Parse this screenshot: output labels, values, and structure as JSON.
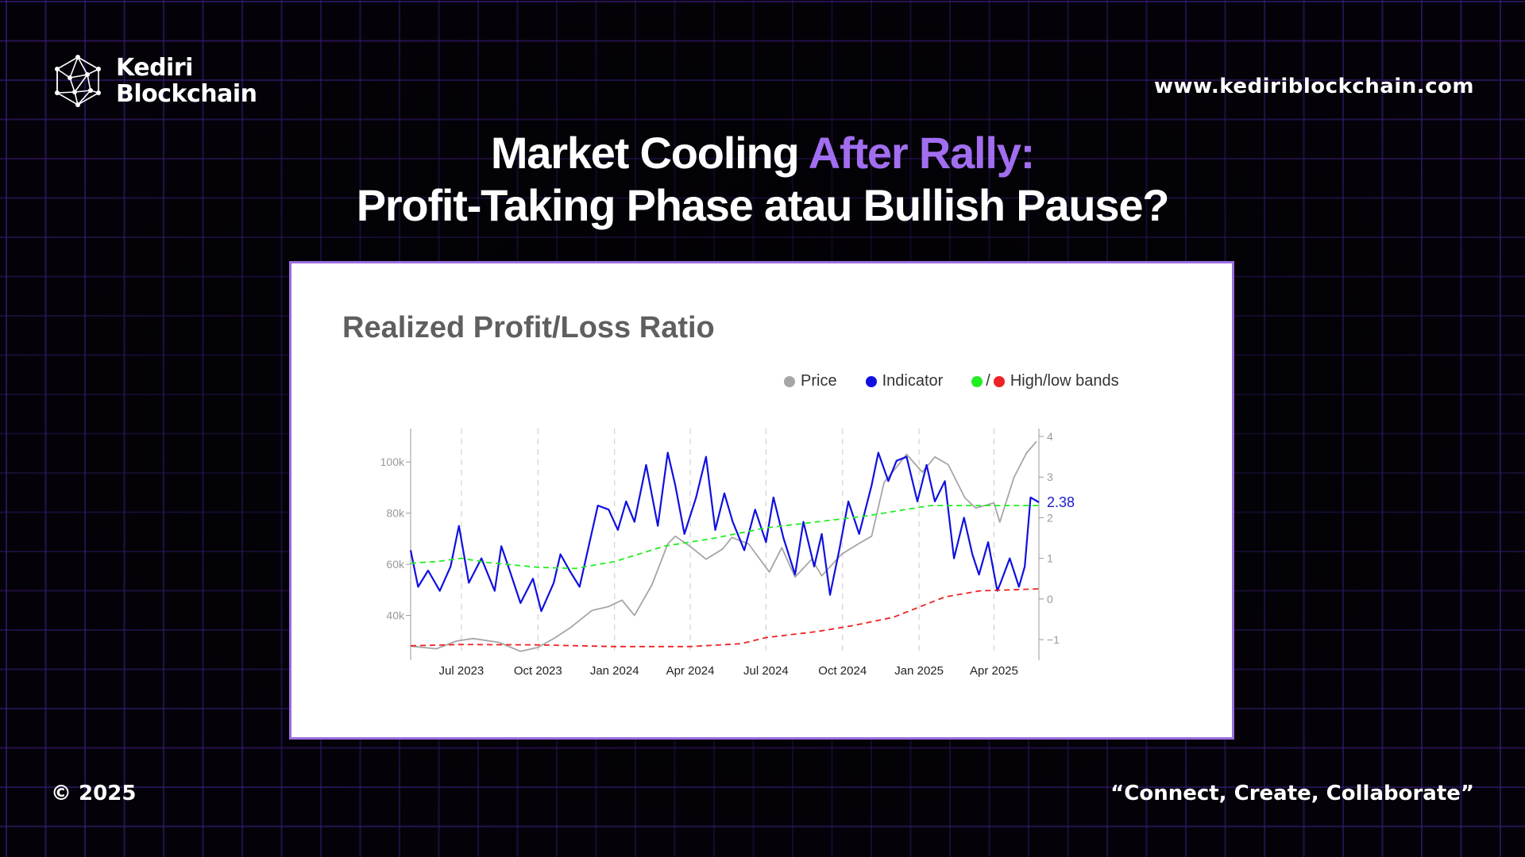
{
  "brand": {
    "name_line1": "Kediri",
    "name_line2": "Blockchain",
    "website": "www.kediriblockchain.com",
    "accent": "#a26ef0"
  },
  "headline": {
    "line1_part1": "Market Cooling ",
    "line1_accent": "After Rally:",
    "line2": "Profit-Taking Phase atau Bullish Pause?"
  },
  "footer": {
    "copyright": "© 2025",
    "tagline": "“Connect, Create, Collaborate”"
  },
  "chart_data": {
    "type": "line",
    "title": "Realized Profit/Loss Ratio",
    "legend": [
      {
        "label": "Price",
        "colors": [
          "#a6a6a6"
        ]
      },
      {
        "label": "Indicator",
        "colors": [
          "#1010e0"
        ]
      },
      {
        "label": "High/low bands",
        "colors": [
          "#22ee22",
          "#ee2222"
        ]
      }
    ],
    "legend_position": "top-right",
    "x_tick_labels": [
      "Jul 2023",
      "Oct 2023",
      "Jan 2024",
      "Apr 2024",
      "Jul 2024",
      "Oct 2024",
      "Jan 2025",
      "Apr 2025"
    ],
    "x_range": [
      "2023-05-01",
      "2025-05-25"
    ],
    "y_left": {
      "ticks": [
        40000,
        60000,
        80000,
        100000
      ],
      "tick_labels": [
        "40k",
        "60k",
        "80k",
        "100k"
      ],
      "range": [
        25000,
        110000
      ]
    },
    "y_right": {
      "ticks": [
        -1,
        0,
        1,
        2,
        3,
        4
      ],
      "tick_labels": [
        "−1",
        "0",
        "1",
        "2",
        "3",
        "4"
      ],
      "range": [
        -1.35,
        4
      ]
    },
    "grid": "vertical dashed at x ticks",
    "last_value_label": "2.38",
    "series": [
      {
        "name": "Price",
        "axis": "left",
        "color": "#a6a6a6",
        "x": [
          "2023-05-01",
          "2023-06-01",
          "2023-06-25",
          "2023-07-15",
          "2023-08-15",
          "2023-09-10",
          "2023-10-01",
          "2023-10-20",
          "2023-11-10",
          "2023-12-05",
          "2023-12-25",
          "2024-01-10",
          "2024-01-25",
          "2024-02-15",
          "2024-03-05",
          "2024-03-14",
          "2024-04-01",
          "2024-04-20",
          "2024-05-10",
          "2024-05-21",
          "2024-06-10",
          "2024-07-05",
          "2024-07-20",
          "2024-08-05",
          "2024-08-25",
          "2024-09-06",
          "2024-09-30",
          "2024-10-20",
          "2024-11-05",
          "2024-11-20",
          "2024-12-05",
          "2024-12-17",
          "2025-01-05",
          "2025-01-20",
          "2025-02-05",
          "2025-02-25",
          "2025-03-10",
          "2025-04-01",
          "2025-04-08",
          "2025-04-25",
          "2025-05-10",
          "2025-05-22"
        ],
        "y": [
          28000,
          27000,
          30000,
          31000,
          29500,
          26000,
          27500,
          31000,
          35500,
          42000,
          43500,
          46000,
          40000,
          52000,
          68000,
          71000,
          67000,
          62000,
          66000,
          70500,
          68000,
          57000,
          66500,
          55000,
          62000,
          55500,
          64000,
          68000,
          71000,
          92000,
          98000,
          103000,
          96000,
          102000,
          99000,
          86000,
          82000,
          84000,
          76500,
          94000,
          103500,
          108000
        ]
      },
      {
        "name": "Indicator",
        "axis": "right",
        "color": "#1010e0",
        "x": [
          "2023-05-01",
          "2023-05-10",
          "2023-05-22",
          "2023-06-05",
          "2023-06-18",
          "2023-06-28",
          "2023-07-10",
          "2023-07-25",
          "2023-08-10",
          "2023-08-18",
          "2023-08-28",
          "2023-09-10",
          "2023-09-25",
          "2023-10-05",
          "2023-10-20",
          "2023-10-28",
          "2023-11-08",
          "2023-11-20",
          "2023-12-01",
          "2023-12-12",
          "2023-12-25",
          "2024-01-05",
          "2024-01-15",
          "2024-01-25",
          "2024-02-08",
          "2024-02-22",
          "2024-03-05",
          "2024-03-14",
          "2024-03-25",
          "2024-04-08",
          "2024-04-20",
          "2024-05-01",
          "2024-05-12",
          "2024-05-22",
          "2024-06-05",
          "2024-06-18",
          "2024-07-01",
          "2024-07-10",
          "2024-07-22",
          "2024-08-05",
          "2024-08-15",
          "2024-08-28",
          "2024-09-06",
          "2024-09-16",
          "2024-09-27",
          "2024-10-08",
          "2024-10-21",
          "2024-11-05",
          "2024-11-13",
          "2024-11-25",
          "2024-12-05",
          "2024-12-17",
          "2024-12-30",
          "2025-01-10",
          "2025-01-20",
          "2025-02-01",
          "2025-02-12",
          "2025-02-24",
          "2025-03-06",
          "2025-03-14",
          "2025-03-25",
          "2025-04-05",
          "2025-04-09",
          "2025-04-20",
          "2025-05-01",
          "2025-05-08",
          "2025-05-15",
          "2025-05-25"
        ],
        "y": [
          1.2,
          0.3,
          0.7,
          0.2,
          0.8,
          1.8,
          0.4,
          1.0,
          0.2,
          1.3,
          0.7,
          -0.1,
          0.5,
          -0.3,
          0.4,
          1.1,
          0.7,
          0.3,
          1.3,
          2.3,
          2.2,
          1.7,
          2.4,
          1.9,
          3.3,
          1.8,
          3.6,
          2.8,
          1.6,
          2.5,
          3.5,
          1.7,
          2.6,
          1.9,
          1.2,
          2.2,
          1.4,
          2.5,
          1.5,
          0.6,
          1.9,
          0.8,
          1.6,
          0.1,
          1.2,
          2.4,
          1.6,
          2.8,
          3.6,
          2.9,
          3.4,
          3.5,
          2.4,
          3.3,
          2.4,
          2.9,
          1.0,
          2.0,
          1.1,
          0.6,
          1.4,
          0.2,
          0.4,
          1.0,
          0.3,
          0.8,
          2.5,
          2.38
        ]
      },
      {
        "name": "High band",
        "axis": "right",
        "color": "#22ee22",
        "dashed": true,
        "x": [
          "2023-05-01",
          "2023-06-01",
          "2023-07-01",
          "2023-08-01",
          "2023-10-01",
          "2023-11-15",
          "2024-01-01",
          "2024-03-01",
          "2024-05-01",
          "2024-07-01",
          "2024-09-01",
          "2024-11-01",
          "2024-12-15",
          "2025-01-15",
          "2025-03-01",
          "2025-04-15",
          "2025-05-25"
        ],
        "y": [
          0.88,
          0.92,
          1.0,
          0.9,
          0.78,
          0.75,
          0.92,
          1.3,
          1.5,
          1.75,
          1.9,
          2.05,
          2.2,
          2.3,
          2.3,
          2.3,
          2.3
        ]
      },
      {
        "name": "Low band",
        "axis": "right",
        "color": "#ee2222",
        "dashed": true,
        "x": [
          "2023-05-01",
          "2023-07-01",
          "2023-10-01",
          "2024-01-01",
          "2024-04-01",
          "2024-06-01",
          "2024-07-01",
          "2024-09-01",
          "2024-10-15",
          "2024-12-01",
          "2025-01-01",
          "2025-02-01",
          "2025-03-15",
          "2025-05-25"
        ],
        "y": [
          -1.15,
          -1.12,
          -1.13,
          -1.17,
          -1.17,
          -1.1,
          -0.95,
          -0.8,
          -0.65,
          -0.45,
          -0.2,
          0.05,
          0.2,
          0.25
        ]
      }
    ]
  }
}
